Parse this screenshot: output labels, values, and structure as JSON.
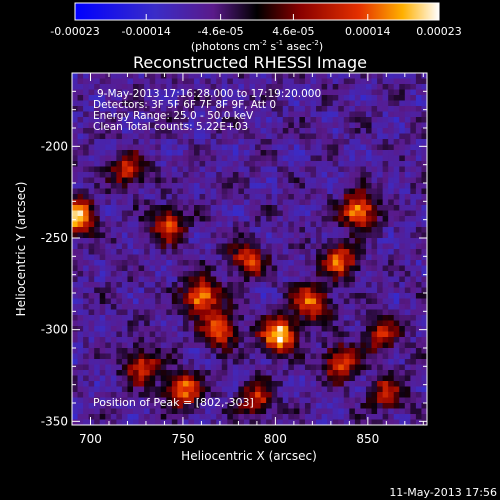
{
  "colorbar": {
    "tick_labels": [
      "-0.00023",
      "-0.00014",
      "-4.6e-05",
      "4.6e-05",
      "0.00014",
      "0.00023"
    ],
    "tick_values": [
      -0.00023,
      -0.00014,
      -4.6e-05,
      4.6e-05,
      0.00014,
      0.00023
    ],
    "range": [
      -0.00023,
      0.00023
    ],
    "units_base": "(photons cm",
    "units_exp1": "-2",
    "units_mid": " s",
    "units_exp2": "-1",
    "units_mid2": " asec",
    "units_exp3": "-2",
    "units_end": ")"
  },
  "chart_data": {
    "type": "heatmap",
    "title": "Reconstructed RHESSI Image",
    "xlabel": "Heliocentric X (arcsec)",
    "ylabel": "Heliocentric Y (arcsec)",
    "xlim": [
      690,
      882
    ],
    "ylim": [
      -352,
      -160
    ],
    "x_ticks": [
      700,
      750,
      800,
      850
    ],
    "y_ticks": [
      -350,
      -300,
      -250,
      -200
    ],
    "info_lines": [
      "9-May-2013 17:16:28.000 to 17:19:20.000",
      "Detectors: 3F 5F 6F 7F 8F 9F, Att 0",
      "Energy Range: 25.0 - 50.0 keV",
      "Clean     Total counts: 5.22E+03"
    ],
    "peak_label": "Position of Peak = [802,-303]",
    "peak_position": [
      802,
      -303
    ],
    "sources": [
      {
        "x": 693,
        "y": -238,
        "value": 0.00021
      },
      {
        "x": 742,
        "y": -243,
        "value": 0.00012
      },
      {
        "x": 720,
        "y": -213,
        "value": 0.0001
      },
      {
        "x": 760,
        "y": -282,
        "value": 0.00019
      },
      {
        "x": 770,
        "y": -300,
        "value": 0.00015
      },
      {
        "x": 802,
        "y": -303,
        "value": 0.00023
      },
      {
        "x": 820,
        "y": -285,
        "value": 0.00016
      },
      {
        "x": 845,
        "y": -235,
        "value": 0.00019
      },
      {
        "x": 835,
        "y": -262,
        "value": 0.00014
      },
      {
        "x": 785,
        "y": -262,
        "value": 0.00012
      },
      {
        "x": 750,
        "y": -333,
        "value": 0.00016
      },
      {
        "x": 728,
        "y": -320,
        "value": 0.00012
      },
      {
        "x": 835,
        "y": -318,
        "value": 0.00014
      },
      {
        "x": 857,
        "y": -303,
        "value": 9e-05
      },
      {
        "x": 860,
        "y": -335,
        "value": 9e-05
      },
      {
        "x": 790,
        "y": -338,
        "value": 0.0001
      }
    ]
  },
  "footer": {
    "timestamp": "11-May-2013 17:56"
  }
}
